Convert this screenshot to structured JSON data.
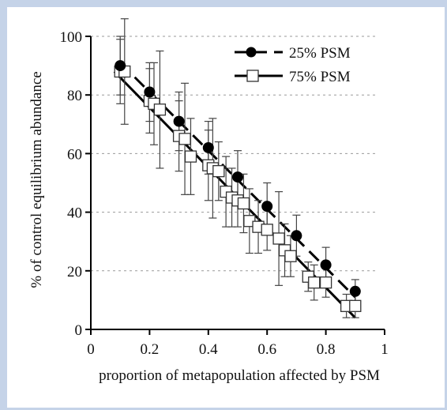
{
  "chart_data": {
    "type": "line",
    "title": "",
    "xlabel": "proportion of metapopulation affected by PSM",
    "ylabel": "% of control equilibrium abundance",
    "xlim": [
      0,
      1
    ],
    "ylim": [
      0,
      100
    ],
    "xticks": [
      0,
      0.2,
      0.4,
      0.6,
      0.8,
      1
    ],
    "xtick_labels": [
      "0",
      "0.2",
      "0.4",
      "0.6",
      "0.8",
      "1"
    ],
    "yticks": [
      0,
      20,
      40,
      60,
      80,
      100
    ],
    "ytick_labels": [
      "0",
      "20",
      "40",
      "60",
      "80",
      "100"
    ],
    "grid": "horizontal-dotted",
    "legend_position": "top-right",
    "series": [
      {
        "name": "25% PSM",
        "marker": "filled-circle",
        "line_style": "dashed",
        "color": "#000000",
        "points": [
          {
            "x": 0.1,
            "y": 90,
            "err": 10
          },
          {
            "x": 0.2,
            "y": 81,
            "err": 10
          },
          {
            "x": 0.3,
            "y": 71,
            "err": 10
          },
          {
            "x": 0.4,
            "y": 62,
            "err": 9
          },
          {
            "x": 0.5,
            "y": 52,
            "err": 9
          },
          {
            "x": 0.6,
            "y": 42,
            "err": 8
          },
          {
            "x": 0.7,
            "y": 32,
            "err": 7
          },
          {
            "x": 0.8,
            "y": 22,
            "err": 6
          },
          {
            "x": 0.9,
            "y": 13,
            "err": 4
          }
        ],
        "fit_line": {
          "x": [
            0.1,
            0.9
          ],
          "y": [
            91,
            11
          ]
        }
      },
      {
        "name": "75% PSM",
        "marker": "open-square",
        "line_style": "solid",
        "color": "#000000",
        "points": [
          {
            "x": 0.1,
            "y": 88,
            "err": 11
          },
          {
            "x": 0.115,
            "y": 88,
            "err": 18
          },
          {
            "x": 0.2,
            "y": 78,
            "err": 11
          },
          {
            "x": 0.215,
            "y": 77,
            "err": 14
          },
          {
            "x": 0.235,
            "y": 75,
            "err": 20
          },
          {
            "x": 0.3,
            "y": 66,
            "err": 12
          },
          {
            "x": 0.32,
            "y": 65,
            "err": 19
          },
          {
            "x": 0.34,
            "y": 59,
            "err": 13
          },
          {
            "x": 0.4,
            "y": 56,
            "err": 12
          },
          {
            "x": 0.415,
            "y": 55,
            "err": 17
          },
          {
            "x": 0.435,
            "y": 54,
            "err": 10
          },
          {
            "x": 0.46,
            "y": 47,
            "err": 12
          },
          {
            "x": 0.48,
            "y": 45,
            "err": 10
          },
          {
            "x": 0.5,
            "y": 44,
            "err": 9
          },
          {
            "x": 0.52,
            "y": 43,
            "err": 10
          },
          {
            "x": 0.54,
            "y": 37,
            "err": 11
          },
          {
            "x": 0.57,
            "y": 35,
            "err": 9
          },
          {
            "x": 0.6,
            "y": 34,
            "err": 7
          },
          {
            "x": 0.64,
            "y": 31,
            "err": 16
          },
          {
            "x": 0.66,
            "y": 27,
            "err": 9
          },
          {
            "x": 0.68,
            "y": 25,
            "err": 7
          },
          {
            "x": 0.74,
            "y": 18,
            "err": 5
          },
          {
            "x": 0.76,
            "y": 16,
            "err": 6
          },
          {
            "x": 0.8,
            "y": 16,
            "err": 5
          },
          {
            "x": 0.87,
            "y": 8,
            "err": 4
          },
          {
            "x": 0.9,
            "y": 8,
            "err": 4
          }
        ],
        "fit_line": {
          "x": [
            0.08,
            0.9
          ],
          "y": [
            88,
            4
          ]
        }
      }
    ]
  }
}
